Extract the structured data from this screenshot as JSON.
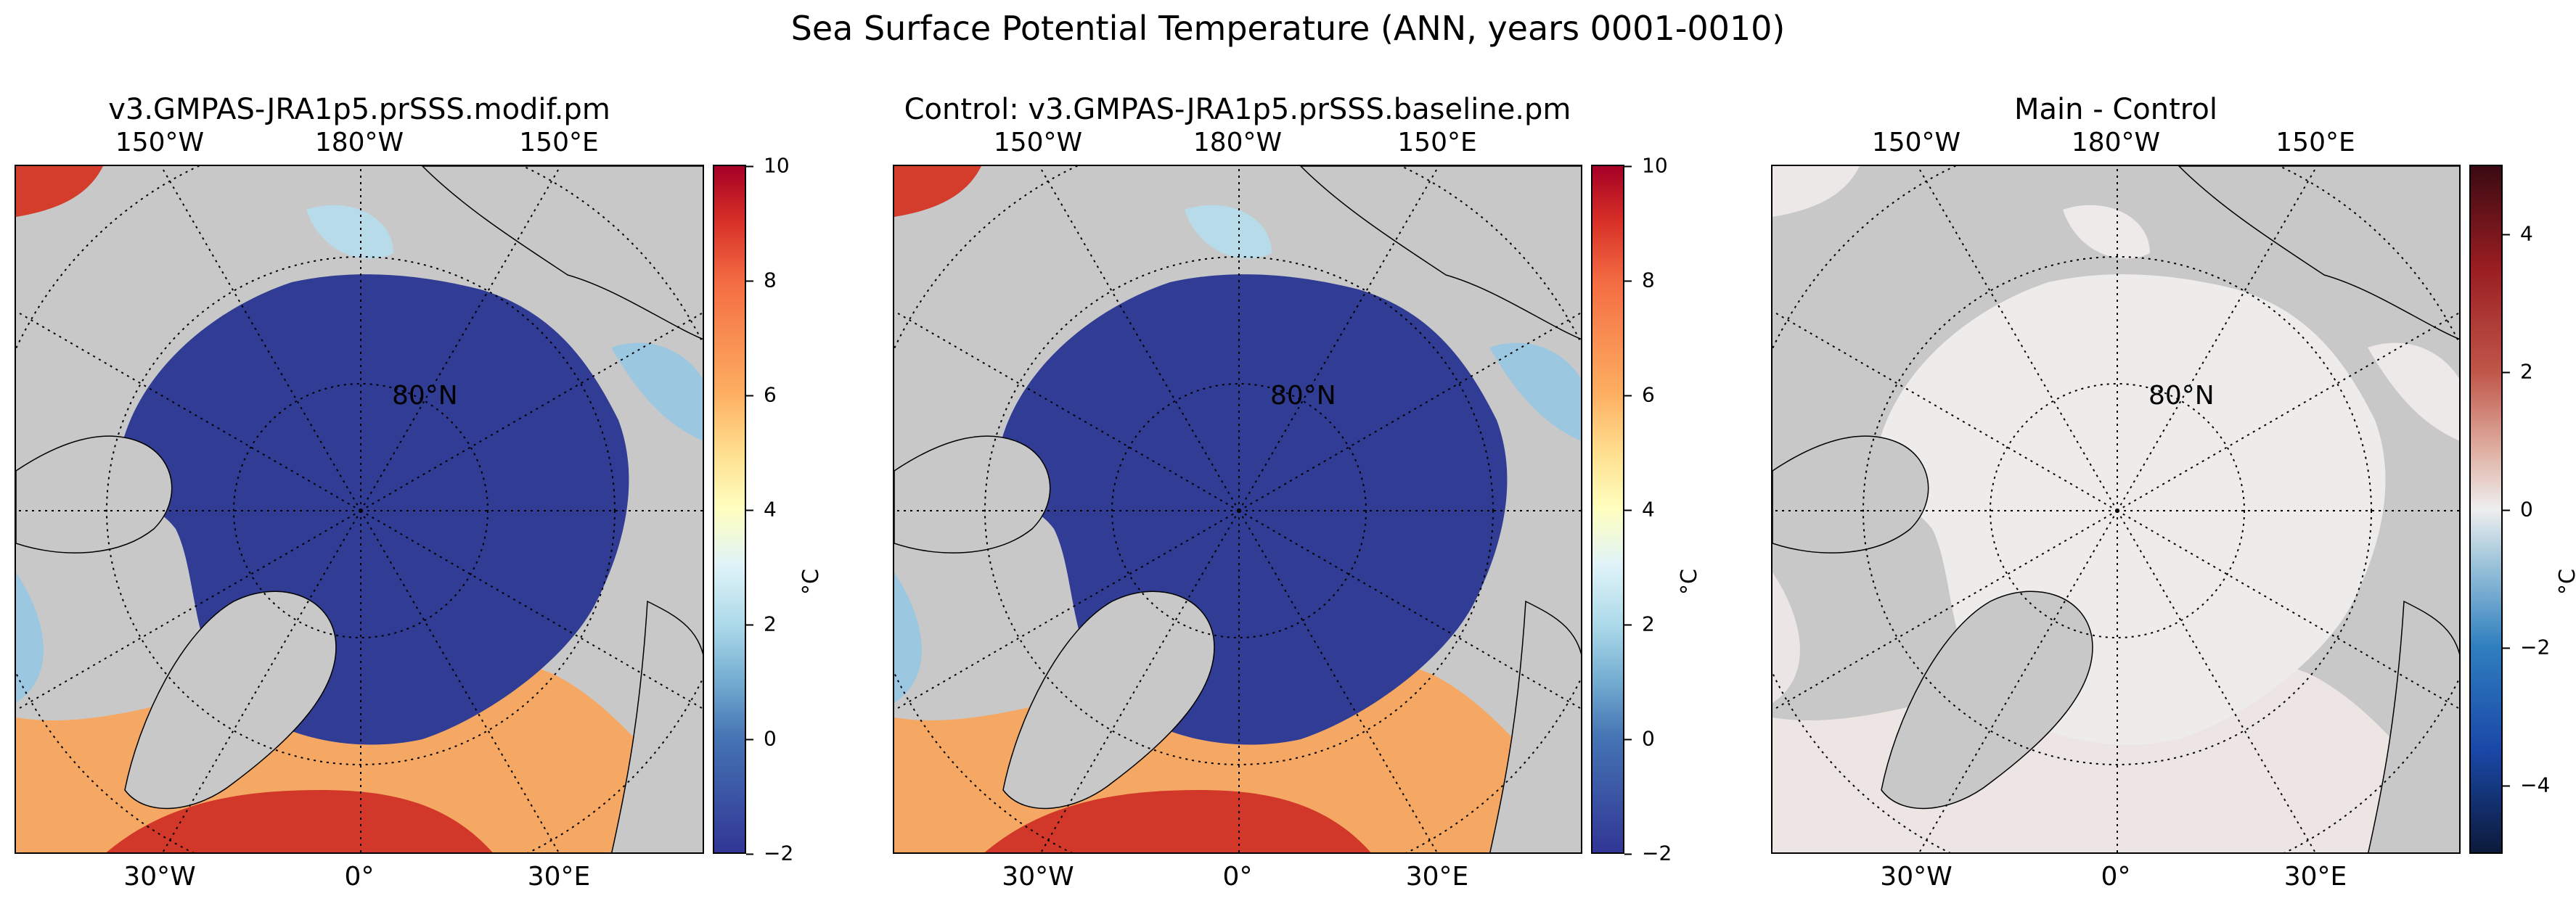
{
  "figure": {
    "suptitle": "Sea Surface Potential Temperature (ANN, years 0001-0010)"
  },
  "panels": [
    {
      "title": "v3.GMPAS-JRA1p5.prSSS.modif.pm",
      "top_lon_labels": [
        "150°W",
        "180°W",
        "150°E"
      ],
      "bottom_lon_labels": [
        "30°W",
        "0°",
        "30°E"
      ],
      "lat_label": "80°N",
      "colorbar": {
        "ticks": [
          "10",
          "8",
          "6",
          "4",
          "2",
          "0",
          "−2"
        ],
        "unit": "°C",
        "colormap": "RdYlBu_r",
        "range": [
          -2,
          10
        ]
      }
    },
    {
      "title": "Control: v3.GMPAS-JRA1p5.prSSS.baseline.pm",
      "top_lon_labels": [
        "150°W",
        "180°W",
        "150°E"
      ],
      "bottom_lon_labels": [
        "30°W",
        "0°",
        "30°E"
      ],
      "lat_label": "80°N",
      "colorbar": {
        "ticks": [
          "10",
          "8",
          "6",
          "4",
          "2",
          "0",
          "−2"
        ],
        "unit": "°C",
        "colormap": "RdYlBu_r",
        "range": [
          -2,
          10
        ]
      }
    },
    {
      "title": "Main - Control",
      "top_lon_labels": [
        "150°W",
        "180°W",
        "150°E"
      ],
      "bottom_lon_labels": [
        "30°W",
        "0°",
        "30°E"
      ],
      "lat_label": "80°N",
      "colorbar": {
        "ticks": [
          "4",
          "2",
          "0",
          "−2",
          "−4"
        ],
        "unit": "°C",
        "colormap": "diverging red-blue",
        "range": [
          -5,
          5
        ]
      }
    }
  ],
  "colors": {
    "land": "#c8c8c8",
    "ocean_cold": "#313c95",
    "ocean_warm": "#c9242a"
  }
}
